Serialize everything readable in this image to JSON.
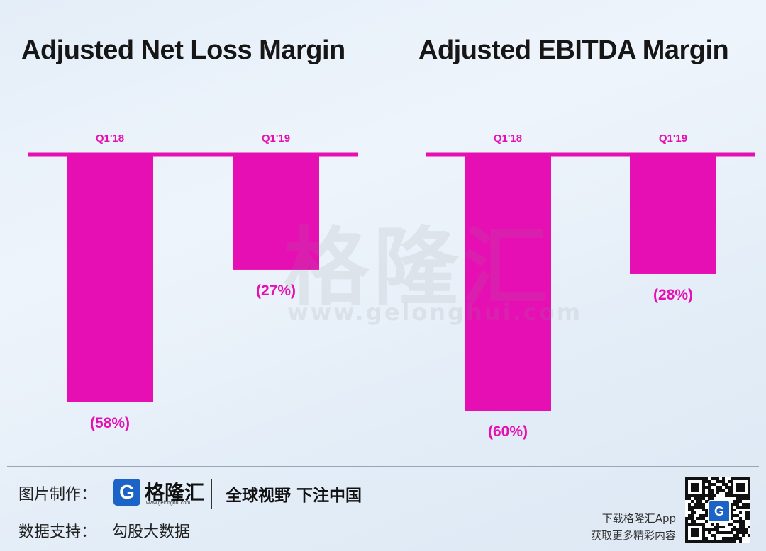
{
  "chart_data": [
    {
      "type": "bar",
      "title": "Adjusted Net Loss Margin",
      "categories": [
        "Q1'18",
        "Q1'19"
      ],
      "values": [
        -58,
        -27
      ],
      "value_labels": [
        "(58%)",
        "(27%)"
      ],
      "ylim": [
        -62,
        0
      ],
      "grid": false,
      "bar_color": "#e60fb4"
    },
    {
      "type": "bar",
      "title": "Adjusted EBITDA Margin",
      "categories": [
        "Q1'18",
        "Q1'19"
      ],
      "values": [
        -60,
        -28
      ],
      "value_labels": [
        "(60%)",
        "(28%)"
      ],
      "ylim": [
        -62,
        0
      ],
      "grid": false,
      "bar_color": "#e60fb4"
    }
  ],
  "watermark": {
    "text": "格隆汇",
    "url": "www.gelonghui.com"
  },
  "footer": {
    "made_by_label": "图片制作：",
    "logo_mark": "G",
    "logo_text": "格隆汇",
    "logo_url": "www.gelonghui.com",
    "slogan": "全球视野 下注中国",
    "data_support_label": "数据支持：",
    "data_source": "勾股大数据",
    "app_line1": "下载格隆汇App",
    "app_line2": "获取更多精彩内容",
    "qr_badge": "G"
  },
  "colors": {
    "accent": "#e60fb4",
    "brand_blue": "#1b63c6"
  }
}
